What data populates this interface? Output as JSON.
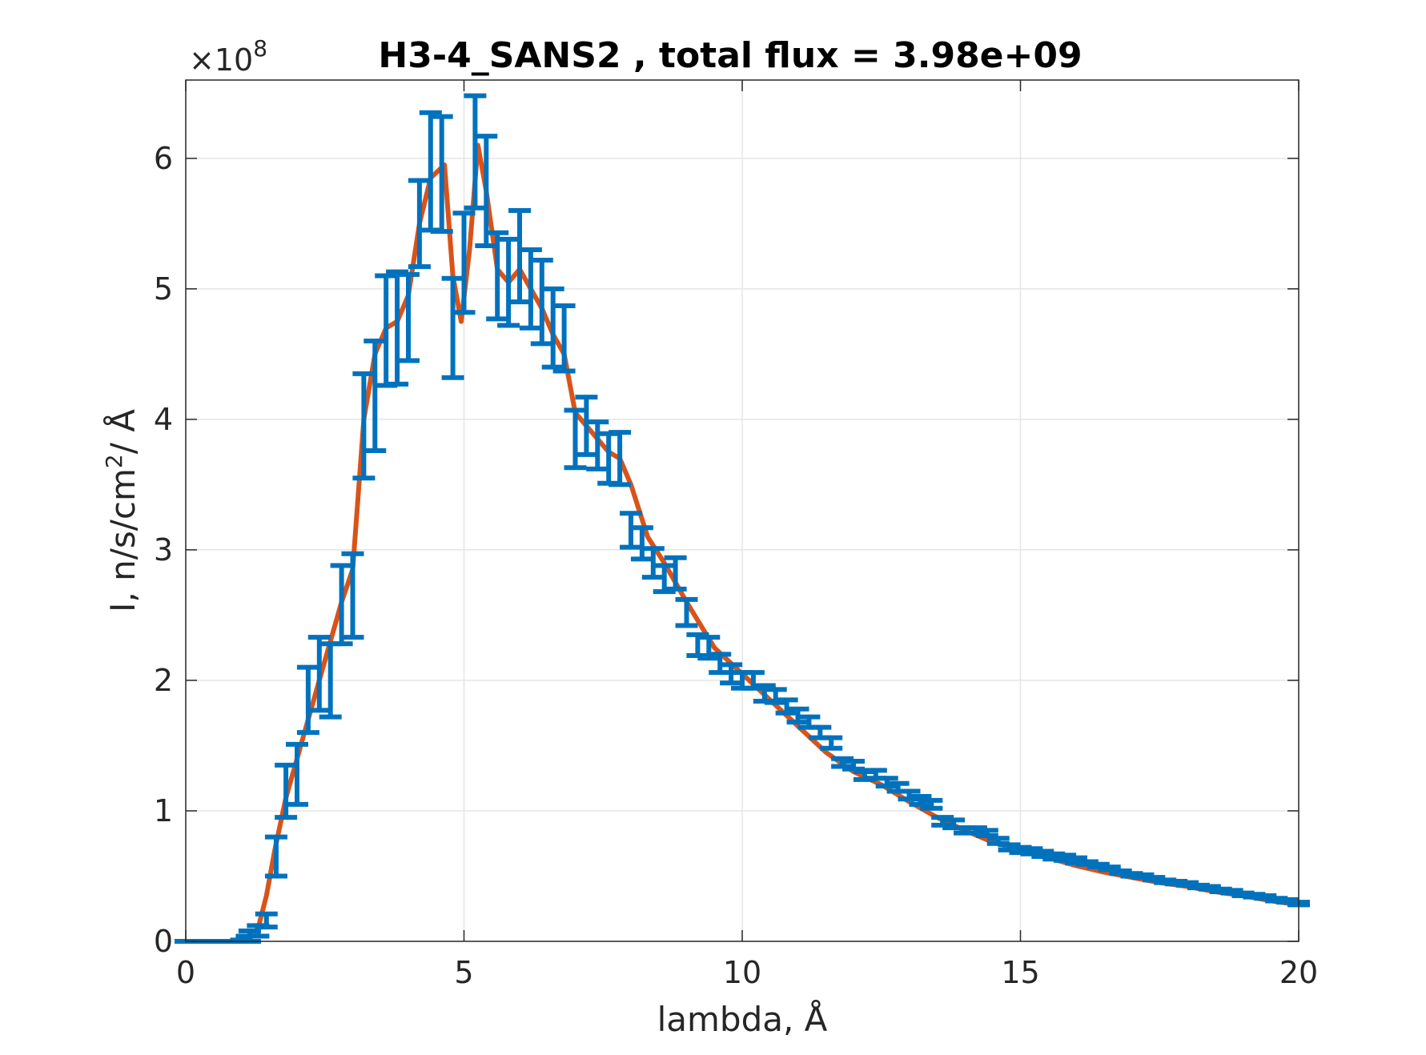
{
  "chart_data": {
    "type": "line",
    "title": "H3-4_SANS2 , total flux =  3.98e+09",
    "xlabel": "lambda,  Å",
    "ylabel_base": "I, n/s/cm",
    "ylabel_sup": "2",
    "ylabel_tail": "/ Å",
    "exponent_base": "×10",
    "exponent_power": "8",
    "xlim": [
      0,
      20
    ],
    "ylim": [
      0,
      6.6
    ],
    "y_scale_factor": 100000000,
    "x_ticks": [
      0,
      5,
      10,
      15,
      20
    ],
    "x_tick_labels": [
      "0",
      "5",
      "10",
      "15",
      "20"
    ],
    "y_ticks": [
      0,
      1,
      2,
      3,
      4,
      5,
      6
    ],
    "y_tick_labels": [
      "0",
      "1",
      "2",
      "3",
      "4",
      "5",
      "6"
    ],
    "grid": true,
    "legend": "none",
    "colors": {
      "fit": "#D95319",
      "data": "#0072BD",
      "axis": "#262626",
      "grid": "#E5E5E5"
    },
    "series": [
      {
        "style": "line",
        "x": [
          0,
          0.3,
          0.6,
          0.9,
          1.0,
          1.15,
          1.3,
          1.45,
          1.6,
          1.8,
          2.0,
          2.2,
          2.4,
          2.6,
          2.8,
          3.0,
          3.2,
          3.4,
          3.6,
          3.8,
          4.0,
          4.2,
          4.4,
          4.65,
          4.8,
          4.95,
          5.1,
          5.25,
          5.4,
          5.6,
          5.8,
          6.0,
          6.2,
          6.4,
          6.6,
          6.8,
          7.0,
          7.2,
          7.4,
          7.6,
          7.8,
          8.0,
          8.3,
          8.6,
          9.0,
          9.5,
          10.0,
          10.5,
          11.0,
          11.5,
          12.0,
          12.5,
          13.0,
          13.5,
          14.0,
          14.5,
          15.0,
          15.5,
          16.0,
          16.5,
          17.0,
          17.5,
          18.0,
          18.5,
          19.0,
          19.5,
          20.0
        ],
        "y": [
          0,
          0,
          0,
          0,
          0.01,
          0.03,
          0.1,
          0.35,
          0.7,
          1.1,
          1.4,
          1.7,
          2.0,
          2.3,
          2.6,
          2.85,
          4.0,
          4.5,
          4.7,
          4.75,
          4.95,
          5.5,
          5.85,
          5.95,
          5.1,
          4.75,
          5.3,
          6.1,
          5.75,
          5.15,
          5.05,
          5.15,
          5.0,
          4.85,
          4.65,
          4.5,
          4.05,
          3.95,
          3.85,
          3.75,
          3.7,
          3.5,
          3.1,
          2.9,
          2.6,
          2.25,
          2.05,
          1.85,
          1.65,
          1.45,
          1.3,
          1.2,
          1.07,
          0.95,
          0.85,
          0.76,
          0.7,
          0.64,
          0.58,
          0.53,
          0.49,
          0.45,
          0.42,
          0.38,
          0.35,
          0.31,
          0.28
        ]
      },
      {
        "style": "errorbar",
        "x": [
          0,
          0.1,
          0.2,
          0.3,
          0.4,
          0.5,
          0.6,
          0.7,
          0.8,
          0.9,
          1.0,
          1.1,
          1.15,
          1.3,
          1.45,
          1.625,
          1.8,
          2.0,
          2.2,
          2.4,
          2.6,
          2.8,
          3.0,
          3.2,
          3.4,
          3.6,
          3.8,
          4.0,
          4.2,
          4.4,
          4.6,
          4.8,
          5.0,
          5.2,
          5.4,
          5.6,
          5.8,
          6.0,
          6.2,
          6.4,
          6.6,
          6.8,
          7.0,
          7.2,
          7.4,
          7.6,
          7.8,
          8.0,
          8.2,
          8.4,
          8.6,
          8.8,
          9.0,
          9.2,
          9.4,
          9.6,
          9.8,
          10.0,
          10.2,
          10.4,
          10.6,
          10.8,
          11.0,
          11.2,
          11.4,
          11.6,
          11.8,
          12.0,
          12.2,
          12.4,
          12.6,
          12.8,
          13.0,
          13.2,
          13.4,
          13.6,
          13.8,
          14.0,
          14.2,
          14.4,
          14.6,
          14.8,
          15.0,
          15.2,
          15.4,
          15.6,
          15.8,
          16.0,
          16.2,
          16.4,
          16.6,
          16.8,
          17.0,
          17.2,
          17.4,
          17.6,
          17.8,
          18.0,
          18.2,
          18.4,
          18.6,
          18.8,
          19.0,
          19.2,
          19.4,
          19.6,
          19.8,
          20.0
        ],
        "y": [
          0,
          0,
          0,
          0,
          0,
          0,
          0,
          0,
          0,
          0,
          0.005,
          0.02,
          0.04,
          0.08,
          0.16,
          0.65,
          1.15,
          1.28,
          1.85,
          2.05,
          2.0,
          2.58,
          2.65,
          3.95,
          4.18,
          4.68,
          4.7,
          4.78,
          5.5,
          5.9,
          5.88,
          4.7,
          5.2,
          6.05,
          5.75,
          5.1,
          5.05,
          5.25,
          5.0,
          4.9,
          4.7,
          4.62,
          3.85,
          3.95,
          3.8,
          3.7,
          3.7,
          3.15,
          3.05,
          2.9,
          2.78,
          2.82,
          2.52,
          2.27,
          2.25,
          2.13,
          2.05,
          2.0,
          2.0,
          1.9,
          1.88,
          1.8,
          1.73,
          1.68,
          1.6,
          1.52,
          1.37,
          1.35,
          1.27,
          1.28,
          1.22,
          1.18,
          1.12,
          1.08,
          1.05,
          0.92,
          0.9,
          0.85,
          0.85,
          0.83,
          0.77,
          0.72,
          0.7,
          0.69,
          0.67,
          0.65,
          0.64,
          0.62,
          0.6,
          0.58,
          0.56,
          0.53,
          0.51,
          0.5,
          0.48,
          0.46,
          0.45,
          0.44,
          0.42,
          0.41,
          0.39,
          0.38,
          0.36,
          0.35,
          0.34,
          0.32,
          0.31,
          0.29
        ],
        "err": [
          0,
          0,
          0,
          0,
          0,
          0,
          0,
          0,
          0,
          0,
          0.005,
          0.02,
          0.04,
          0.04,
          0.05,
          0.15,
          0.2,
          0.23,
          0.25,
          0.28,
          0.28,
          0.3,
          0.32,
          0.4,
          0.42,
          0.42,
          0.43,
          0.33,
          0.33,
          0.45,
          0.44,
          0.38,
          0.38,
          0.43,
          0.42,
          0.33,
          0.33,
          0.35,
          0.3,
          0.32,
          0.3,
          0.25,
          0.22,
          0.22,
          0.18,
          0.19,
          0.2,
          0.13,
          0.12,
          0.11,
          0.1,
          0.12,
          0.1,
          0.08,
          0.08,
          0.07,
          0.07,
          0.06,
          0.06,
          0.06,
          0.05,
          0.05,
          0.05,
          0.04,
          0.04,
          0.04,
          0.03,
          0.03,
          0.03,
          0.03,
          0.03,
          0.03,
          0.03,
          0.03,
          0.03,
          0.03,
          0.03,
          0.02,
          0.02,
          0.02,
          0.02,
          0.02,
          0.02,
          0.02,
          0.02,
          0.02,
          0.02,
          0.02,
          0.01,
          0.01,
          0.01,
          0.01,
          0.01,
          0.01,
          0.01,
          0.01,
          0.01,
          0.01,
          0.01,
          0.01,
          0.01,
          0.01,
          0.01,
          0.01,
          0.01,
          0.01,
          0.01,
          0.01
        ]
      }
    ]
  }
}
